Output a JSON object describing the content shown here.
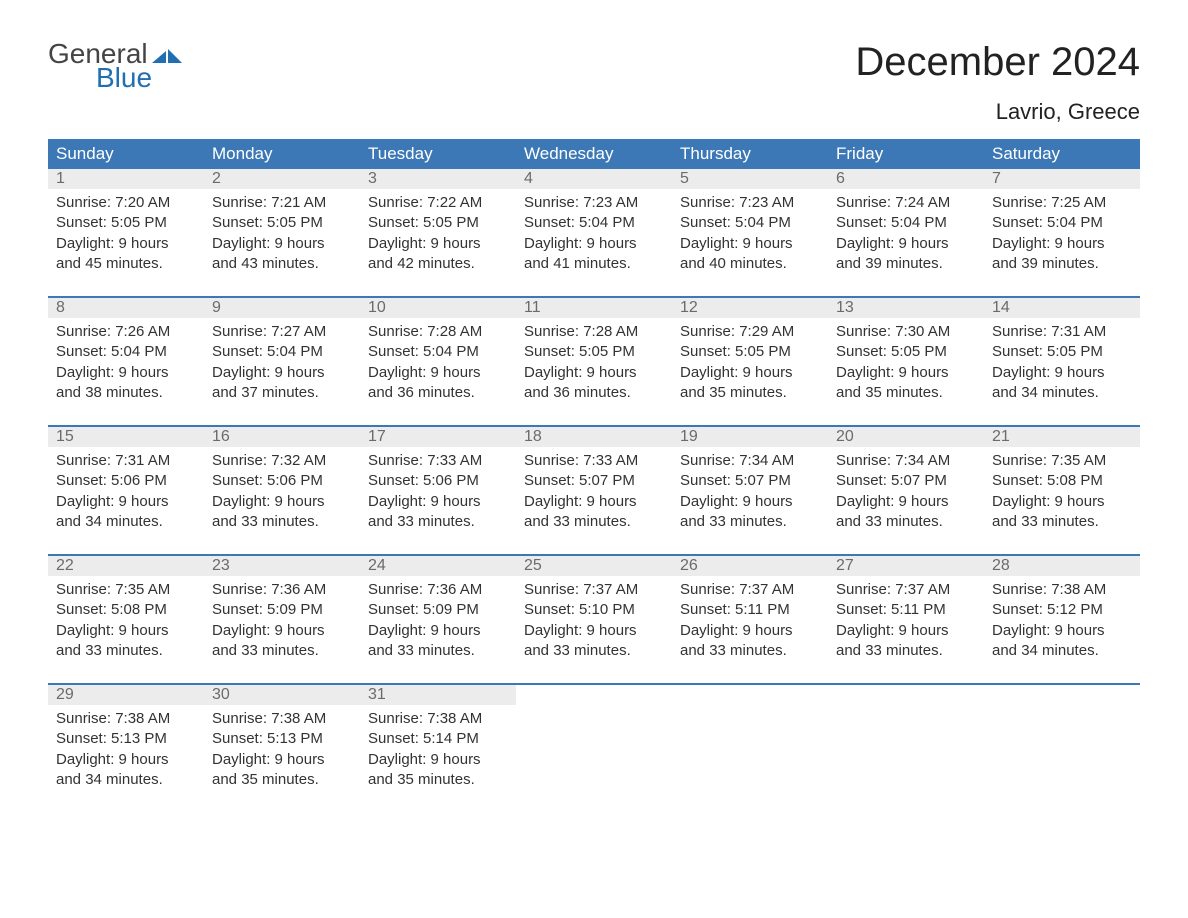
{
  "logo": {
    "line1": "General",
    "line2": "Blue"
  },
  "title": "December 2024",
  "location": "Lavrio, Greece",
  "colors": {
    "header_bg": "#3b78b5",
    "header_text": "#ffffff",
    "daynum_bg": "#ececec",
    "daynum_text": "#6b6b6b",
    "body_text": "#333333",
    "logo_accent": "#1f6fb2",
    "page_bg": "#ffffff",
    "row_divider": "#3b78b5"
  },
  "typography": {
    "title_fontsize": 40,
    "location_fontsize": 22,
    "dayheader_fontsize": 17,
    "cell_fontsize": 15,
    "font_family": "Arial"
  },
  "layout": {
    "columns": 7,
    "rows": 5
  },
  "day_headers": [
    "Sunday",
    "Monday",
    "Tuesday",
    "Wednesday",
    "Thursday",
    "Friday",
    "Saturday"
  ],
  "labels": {
    "sunrise": "Sunrise:",
    "sunset": "Sunset:",
    "daylight": "Daylight:"
  },
  "weeks": [
    [
      {
        "num": "1",
        "sunrise": "7:20 AM",
        "sunset": "5:05 PM",
        "daylight_hours": "9 hours",
        "daylight_minutes": "and 45 minutes."
      },
      {
        "num": "2",
        "sunrise": "7:21 AM",
        "sunset": "5:05 PM",
        "daylight_hours": "9 hours",
        "daylight_minutes": "and 43 minutes."
      },
      {
        "num": "3",
        "sunrise": "7:22 AM",
        "sunset": "5:05 PM",
        "daylight_hours": "9 hours",
        "daylight_minutes": "and 42 minutes."
      },
      {
        "num": "4",
        "sunrise": "7:23 AM",
        "sunset": "5:04 PM",
        "daylight_hours": "9 hours",
        "daylight_minutes": "and 41 minutes."
      },
      {
        "num": "5",
        "sunrise": "7:23 AM",
        "sunset": "5:04 PM",
        "daylight_hours": "9 hours",
        "daylight_minutes": "and 40 minutes."
      },
      {
        "num": "6",
        "sunrise": "7:24 AM",
        "sunset": "5:04 PM",
        "daylight_hours": "9 hours",
        "daylight_minutes": "and 39 minutes."
      },
      {
        "num": "7",
        "sunrise": "7:25 AM",
        "sunset": "5:04 PM",
        "daylight_hours": "9 hours",
        "daylight_minutes": "and 39 minutes."
      }
    ],
    [
      {
        "num": "8",
        "sunrise": "7:26 AM",
        "sunset": "5:04 PM",
        "daylight_hours": "9 hours",
        "daylight_minutes": "and 38 minutes."
      },
      {
        "num": "9",
        "sunrise": "7:27 AM",
        "sunset": "5:04 PM",
        "daylight_hours": "9 hours",
        "daylight_minutes": "and 37 minutes."
      },
      {
        "num": "10",
        "sunrise": "7:28 AM",
        "sunset": "5:04 PM",
        "daylight_hours": "9 hours",
        "daylight_minutes": "and 36 minutes."
      },
      {
        "num": "11",
        "sunrise": "7:28 AM",
        "sunset": "5:05 PM",
        "daylight_hours": "9 hours",
        "daylight_minutes": "and 36 minutes."
      },
      {
        "num": "12",
        "sunrise": "7:29 AM",
        "sunset": "5:05 PM",
        "daylight_hours": "9 hours",
        "daylight_minutes": "and 35 minutes."
      },
      {
        "num": "13",
        "sunrise": "7:30 AM",
        "sunset": "5:05 PM",
        "daylight_hours": "9 hours",
        "daylight_minutes": "and 35 minutes."
      },
      {
        "num": "14",
        "sunrise": "7:31 AM",
        "sunset": "5:05 PM",
        "daylight_hours": "9 hours",
        "daylight_minutes": "and 34 minutes."
      }
    ],
    [
      {
        "num": "15",
        "sunrise": "7:31 AM",
        "sunset": "5:06 PM",
        "daylight_hours": "9 hours",
        "daylight_minutes": "and 34 minutes."
      },
      {
        "num": "16",
        "sunrise": "7:32 AM",
        "sunset": "5:06 PM",
        "daylight_hours": "9 hours",
        "daylight_minutes": "and 33 minutes."
      },
      {
        "num": "17",
        "sunrise": "7:33 AM",
        "sunset": "5:06 PM",
        "daylight_hours": "9 hours",
        "daylight_minutes": "and 33 minutes."
      },
      {
        "num": "18",
        "sunrise": "7:33 AM",
        "sunset": "5:07 PM",
        "daylight_hours": "9 hours",
        "daylight_minutes": "and 33 minutes."
      },
      {
        "num": "19",
        "sunrise": "7:34 AM",
        "sunset": "5:07 PM",
        "daylight_hours": "9 hours",
        "daylight_minutes": "and 33 minutes."
      },
      {
        "num": "20",
        "sunrise": "7:34 AM",
        "sunset": "5:07 PM",
        "daylight_hours": "9 hours",
        "daylight_minutes": "and 33 minutes."
      },
      {
        "num": "21",
        "sunrise": "7:35 AM",
        "sunset": "5:08 PM",
        "daylight_hours": "9 hours",
        "daylight_minutes": "and 33 minutes."
      }
    ],
    [
      {
        "num": "22",
        "sunrise": "7:35 AM",
        "sunset": "5:08 PM",
        "daylight_hours": "9 hours",
        "daylight_minutes": "and 33 minutes."
      },
      {
        "num": "23",
        "sunrise": "7:36 AM",
        "sunset": "5:09 PM",
        "daylight_hours": "9 hours",
        "daylight_minutes": "and 33 minutes."
      },
      {
        "num": "24",
        "sunrise": "7:36 AM",
        "sunset": "5:09 PM",
        "daylight_hours": "9 hours",
        "daylight_minutes": "and 33 minutes."
      },
      {
        "num": "25",
        "sunrise": "7:37 AM",
        "sunset": "5:10 PM",
        "daylight_hours": "9 hours",
        "daylight_minutes": "and 33 minutes."
      },
      {
        "num": "26",
        "sunrise": "7:37 AM",
        "sunset": "5:11 PM",
        "daylight_hours": "9 hours",
        "daylight_minutes": "and 33 minutes."
      },
      {
        "num": "27",
        "sunrise": "7:37 AM",
        "sunset": "5:11 PM",
        "daylight_hours": "9 hours",
        "daylight_minutes": "and 33 minutes."
      },
      {
        "num": "28",
        "sunrise": "7:38 AM",
        "sunset": "5:12 PM",
        "daylight_hours": "9 hours",
        "daylight_minutes": "and 34 minutes."
      }
    ],
    [
      {
        "num": "29",
        "sunrise": "7:38 AM",
        "sunset": "5:13 PM",
        "daylight_hours": "9 hours",
        "daylight_minutes": "and 34 minutes."
      },
      {
        "num": "30",
        "sunrise": "7:38 AM",
        "sunset": "5:13 PM",
        "daylight_hours": "9 hours",
        "daylight_minutes": "and 35 minutes."
      },
      {
        "num": "31",
        "sunrise": "7:38 AM",
        "sunset": "5:14 PM",
        "daylight_hours": "9 hours",
        "daylight_minutes": "and 35 minutes."
      },
      null,
      null,
      null,
      null
    ]
  ]
}
